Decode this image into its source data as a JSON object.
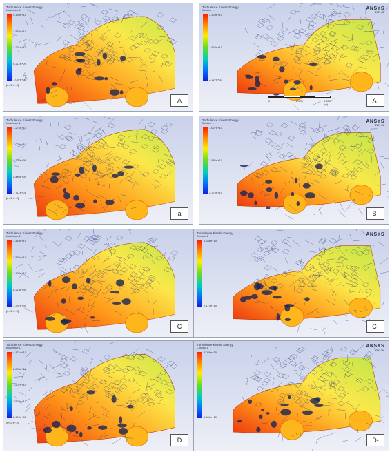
{
  "panels": [
    {
      "id": "a1",
      "tag": "A",
      "legend_title": "Turbulence Kinetic Energy",
      "legend_sub": "Isosurface 1",
      "ticks": [
        "5.458e+10",
        "3.864e+10",
        "2.261e+10",
        "6.211e+09",
        "1.097e+00"
      ],
      "units": "[m^2 s^-2]",
      "logo": "",
      "logo_ver": "",
      "scale": []
    },
    {
      "id": "b1",
      "tag": "A-",
      "legend_title": "Turbulence Kinetic Energy",
      "legend_sub": "Contour 1",
      "ticks": [
        "3.409e+10",
        "1.664e+10",
        "2.127e+03"
      ],
      "units": "",
      "logo": "ANSYS",
      "logo_ver": "2021 R2",
      "scale": [
        "0",
        "2.500",
        "5.000 (m)"
      ]
    },
    {
      "id": "a2",
      "tag": "a",
      "legend_title": "Turbulence Kinetic Energy",
      "legend_sub": "Isosurface 1",
      "ticks": [
        "1.276e+10",
        "1.020e+10",
        "8.302e+09",
        "5.446e+09",
        "1.711e+01"
      ],
      "units": "[m^2 s^-2]",
      "logo": "",
      "logo_ver": "",
      "scale": []
    },
    {
      "id": "b2",
      "tag": "B-",
      "legend_title": "Turbulence Kinetic Energy",
      "legend_sub": "Contour 1",
      "ticks": [
        "1.627e+10",
        "2.886e+10",
        "2.370e+10"
      ],
      "units": "",
      "logo": "ANSYS",
      "logo_ver": "2021 R2",
      "scale": []
    },
    {
      "id": "a3",
      "tag": "C",
      "legend_title": "Turbulence Kinetic Energy",
      "legend_sub": "Isosurface 1",
      "ticks": [
        "3.465e+10",
        "2.865e+10",
        "1.423e+10",
        "6.215e+09",
        "1.397e+00"
      ],
      "units": "[m^2 s^-2]",
      "logo": "",
      "logo_ver": "",
      "scale": []
    },
    {
      "id": "b3",
      "tag": "C-",
      "legend_title": "Turbulence Kinetic Energy",
      "legend_sub": "Contour 1",
      "ticks": [
        "4.286e+10",
        "2.174e+10"
      ],
      "units": "",
      "logo": "ANSYS",
      "logo_ver": "",
      "scale": []
    },
    {
      "id": "a4",
      "tag": "D",
      "legend_title": "Turbulence Kinetic Energy",
      "legend_sub": "Isosurface 1",
      "ticks": [
        "4.171e+10",
        "2.896e+10",
        "1.507e+10",
        "1.224e+10",
        "2.402e+01"
      ],
      "units": "[m^2 s^-2]",
      "logo": "",
      "logo_ver": "",
      "scale": []
    },
    {
      "id": "b4",
      "tag": "D-",
      "legend_title": "Turbulence Kinetic Energy",
      "legend_sub": "Contour 1",
      "ticks": [
        "3.089e+10",
        "1.569e+10"
      ],
      "units": "",
      "logo": "ANSYS",
      "logo_ver": "2021 R2",
      "scale": []
    }
  ],
  "colors": {
    "mesh": "#1c2a6e",
    "sky": "#d8def0",
    "car_red": "#ee3a10",
    "car_orange": "#ff9a1a",
    "car_yellow": "#fbe84a",
    "car_green": "#bfe64a"
  }
}
